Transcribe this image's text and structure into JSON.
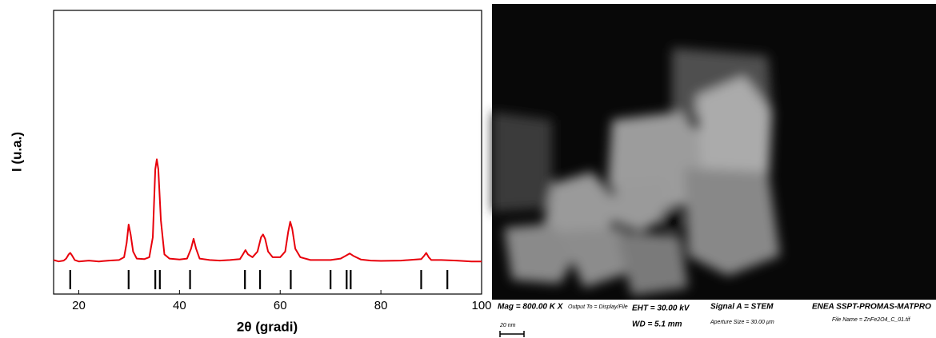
{
  "chart_data": {
    "type": "line",
    "x_label": "2θ (gradi)",
    "y_label": "I (u.a.)",
    "xlim": [
      15,
      100
    ],
    "xticks": [
      20,
      40,
      60,
      80,
      100
    ],
    "ylim": [
      0,
      100
    ],
    "x": [
      15,
      16,
      17,
      17.5,
      18,
      18.3,
      18.7,
      19.2,
      20,
      22,
      24,
      26,
      28,
      29,
      29.5,
      29.9,
      30.3,
      30.8,
      31.5,
      33,
      34,
      34.7,
      35.2,
      35.5,
      35.8,
      36.3,
      37,
      38,
      40,
      41.5,
      42.3,
      42.8,
      43.3,
      44,
      46,
      48,
      50,
      52,
      52.6,
      53.1,
      53.6,
      54.5,
      55.5,
      56.2,
      56.6,
      57,
      57.6,
      58.5,
      60,
      61,
      61.6,
      62,
      62.4,
      63,
      64,
      66,
      68,
      70,
      72,
      73,
      73.8,
      74.5,
      76,
      78,
      80,
      84,
      88,
      88.6,
      89,
      89.5,
      90,
      92,
      95,
      98,
      100
    ],
    "series": [
      {
        "color": "#e8000b",
        "values": [
          12,
          11.5,
          11.8,
          12.5,
          14,
          14.5,
          13.5,
          12,
          11.5,
          11.8,
          11.5,
          11.8,
          12,
          13,
          18,
          24.5,
          21,
          15,
          12.5,
          12.3,
          13,
          20,
          44,
          47.5,
          44,
          26,
          14,
          12.5,
          12.2,
          12.5,
          16,
          19.5,
          16,
          12.5,
          12,
          11.8,
          12,
          12.3,
          14,
          15.5,
          14,
          13,
          15,
          20,
          21,
          19.5,
          15,
          13,
          13,
          15,
          22,
          25.5,
          23,
          16,
          13,
          12,
          12,
          12,
          12.5,
          13.5,
          14.3,
          13.5,
          12.2,
          11.8,
          11.7,
          11.8,
          12.3,
          13.5,
          14.5,
          13,
          12,
          12,
          11.8,
          11.5,
          11.5
        ]
      }
    ],
    "reference_positions": [
      18.3,
      29.9,
      35.2,
      36.1,
      42.1,
      53.0,
      56.0,
      62.1,
      70.0,
      73.2,
      74.0,
      88.0,
      93.2
    ],
    "reference_color": "#000000"
  },
  "micrograph": {
    "mag": "Mag = 800.00 K X",
    "output": "Output To = Display/File",
    "eht": "EHT = 30.00 kV",
    "wd": "WD =  5.1 mm",
    "signal": "Signal A = STEM",
    "aperture": "Aperture Size = 30.00 µm",
    "lab": "ENEA SSPT-PROMAS-MATPRO",
    "file": "File Name = ZnFe2O4_C_01.tif",
    "scale": "20 nm"
  }
}
